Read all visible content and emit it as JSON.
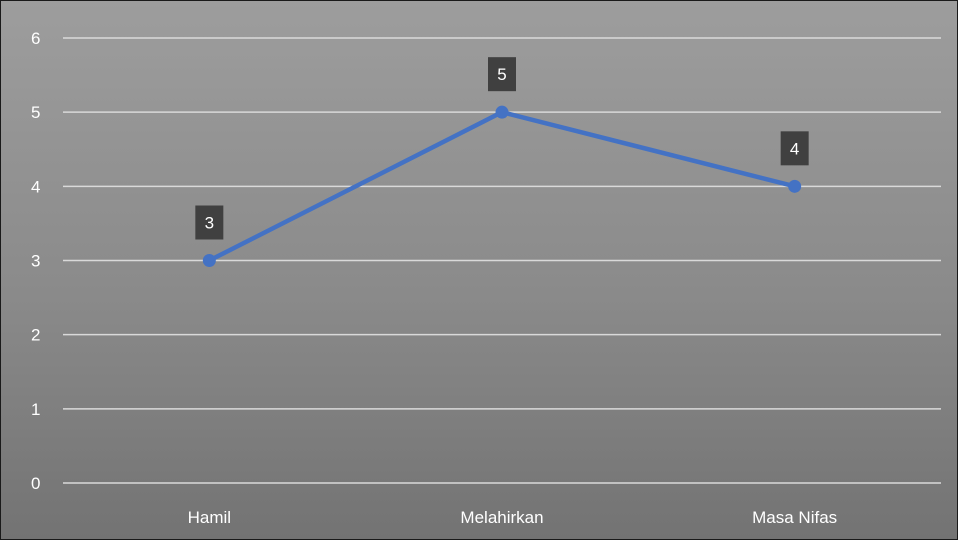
{
  "chart_data": {
    "type": "line",
    "title": "",
    "xlabel": "",
    "ylabel": "",
    "categories": [
      "Hamil",
      "Melahirkan",
      "Masa Nifas"
    ],
    "series": [
      {
        "values": [
          3,
          5,
          4
        ],
        "color": "#4472c4"
      }
    ],
    "ylim": [
      0,
      6
    ],
    "yticks": [
      "0",
      "1",
      "2",
      "3",
      "4",
      "5",
      "6"
    ],
    "grid": true,
    "legend": "none",
    "data_labels": true,
    "colors": {
      "gridline": "#d9d9d9",
      "label_box": "#404040",
      "text": "#ffffff"
    }
  }
}
